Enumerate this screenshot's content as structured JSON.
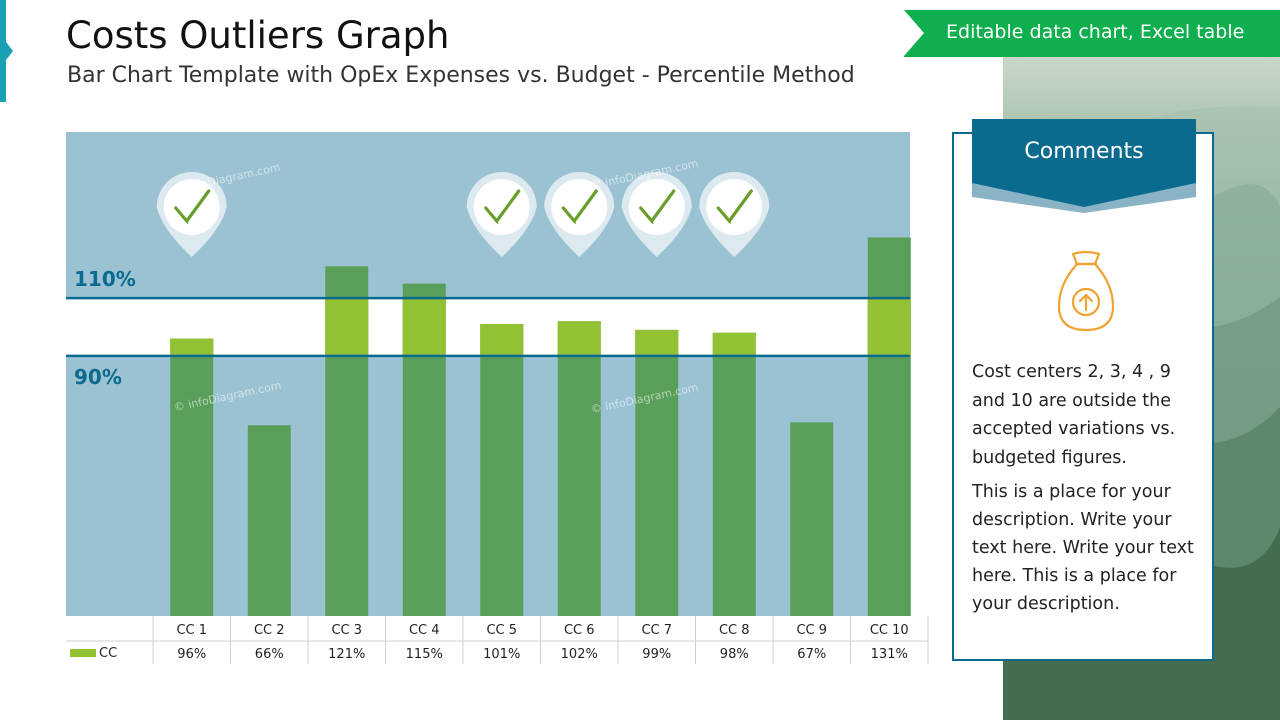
{
  "header": {
    "title": "Costs Outliers Graph",
    "subtitle": "Bar Chart Template with OpEx Expenses vs. Budget - Percentile Method"
  },
  "banner": {
    "label": "Editable data chart, Excel table"
  },
  "comments": {
    "title": "Comments",
    "paragraph1": "Cost centers 2, 3, 4 , 9 and 10 are outside the accepted variations vs. budgeted figures.",
    "paragraph2": "This is a place for your description. Write your text here. Write your text here. This is a place for your description.",
    "icon": "money-bag-arrow-up-icon"
  },
  "watermark": "© infoDiagram.com",
  "chart_data": {
    "type": "bar",
    "categories": [
      "CC 1",
      "CC 2",
      "CC 3",
      "CC 4",
      "CC 5",
      "CC 6",
      "CC 7",
      "CC 8",
      "CC 9",
      "CC 10"
    ],
    "series": [
      {
        "name": "CC",
        "values": [
          96,
          66,
          121,
          115,
          101,
          102,
          99,
          98,
          67,
          131
        ]
      }
    ],
    "value_labels": [
      "96%",
      "66%",
      "121%",
      "115%",
      "101%",
      "102%",
      "99%",
      "98%",
      "67%",
      "131%"
    ],
    "reference_lines": [
      {
        "label": "110%",
        "value": 110
      },
      {
        "label": "90%",
        "value": 90
      }
    ],
    "checkmarks": [
      "CC 1",
      "CC 5",
      "CC 6",
      "CC 7",
      "CC 8"
    ],
    "ylim": [
      0,
      145
    ],
    "colors": {
      "plot_bg": "#9ac2d3",
      "band_bg": "#ffffff",
      "bar_dark": "#599f59",
      "bar_light": "#92c133",
      "ref_line": "#0b6b8f",
      "check": "#6a9e2a"
    }
  }
}
